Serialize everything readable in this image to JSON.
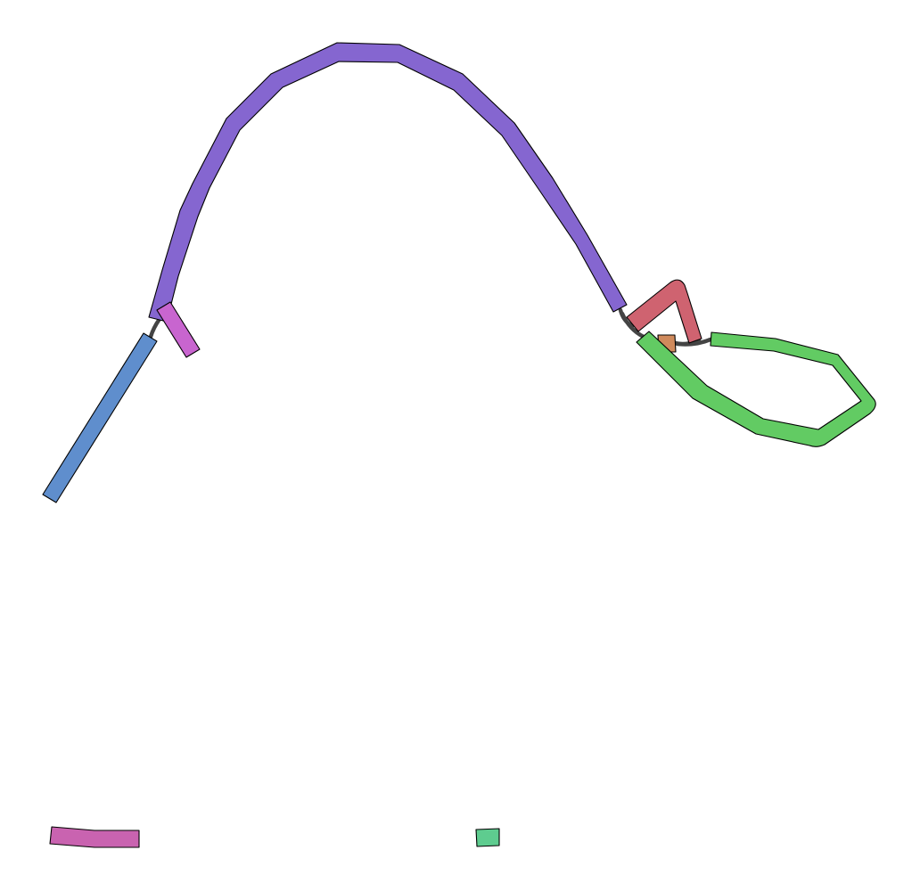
{
  "graph": {
    "type": "assembly-graph",
    "segments": [
      {
        "id": "purple-arc",
        "color": "#8566D0"
      },
      {
        "id": "blue-strand",
        "color": "#5F8ECD"
      },
      {
        "id": "magenta-stub",
        "color": "#C865CF"
      },
      {
        "id": "red-hook",
        "color": "#CF6370"
      },
      {
        "id": "orange-node",
        "color": "#D08A5C"
      },
      {
        "id": "green-loop",
        "color": "#62CB63"
      },
      {
        "id": "pink-fragment",
        "color": "#C963B0"
      },
      {
        "id": "teal-fragment",
        "color": "#5ECC8F"
      }
    ],
    "links": [
      {
        "id": "link-blue-purple"
      },
      {
        "id": "link-purple-red"
      },
      {
        "id": "link-red-orange"
      },
      {
        "id": "link-purple-green"
      },
      {
        "id": "link-orange-green"
      }
    ]
  }
}
